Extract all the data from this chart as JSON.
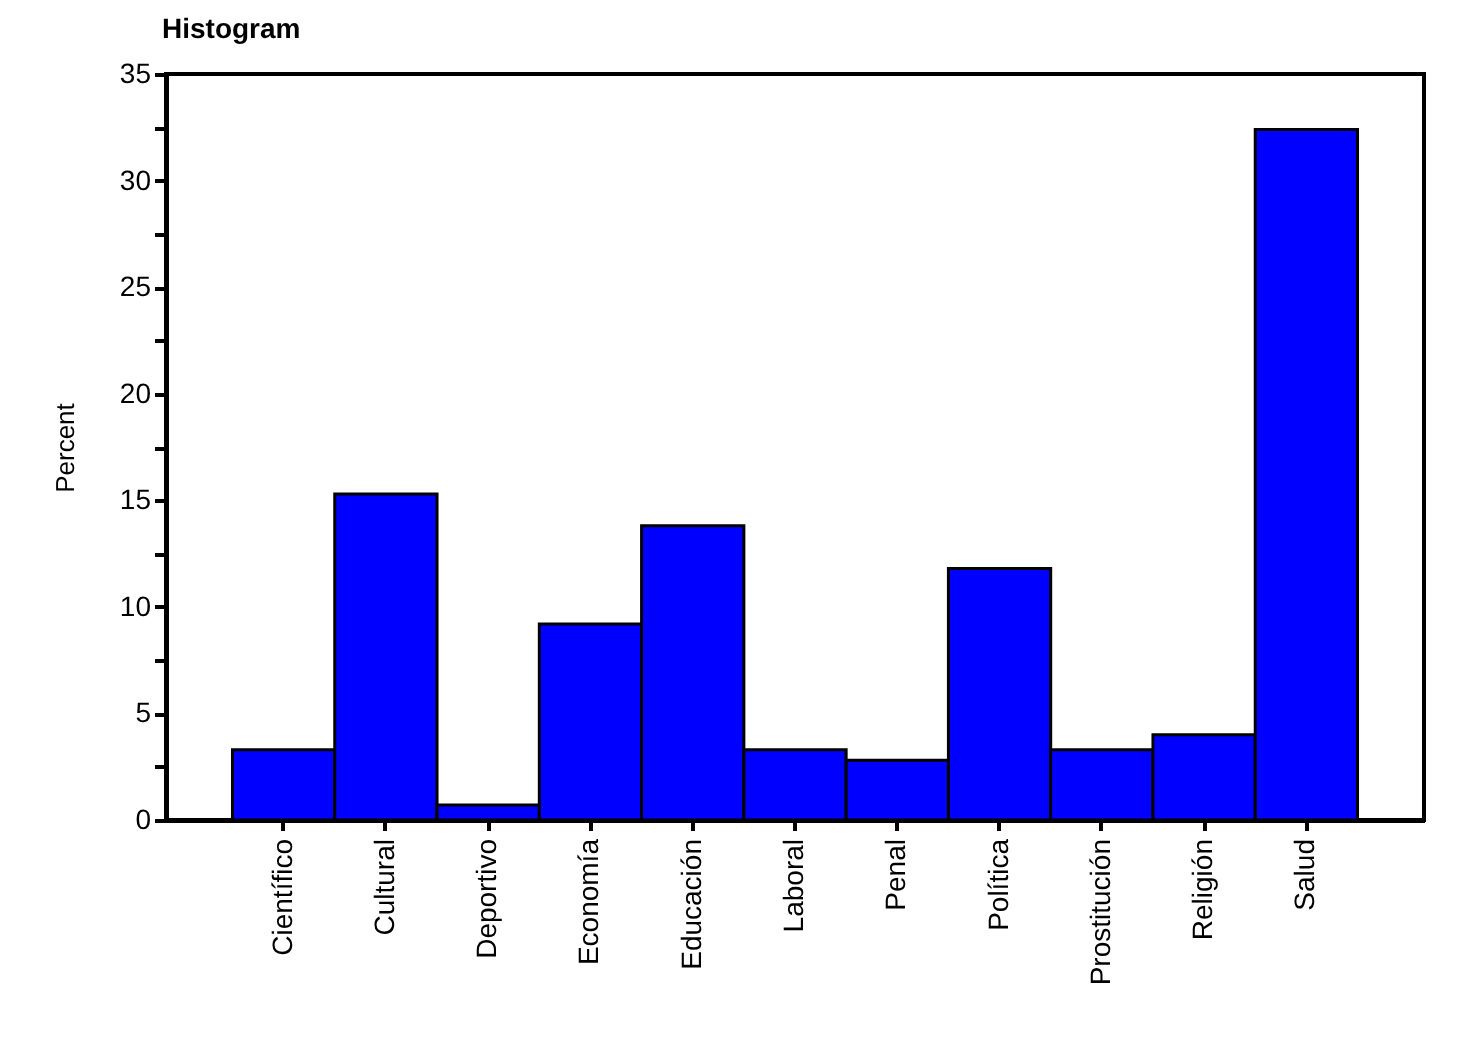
{
  "chart_data": {
    "type": "bar",
    "title": "Histogram",
    "ylabel": "Percent",
    "categories": [
      "Científico",
      "Cultural",
      "Deportivo",
      "Economía",
      "Educación",
      "Laboral",
      "Penal",
      "Política",
      "Prostitución",
      "Religión",
      "Salud"
    ],
    "values": [
      3.3,
      15.3,
      0.7,
      9.2,
      13.8,
      3.3,
      2.8,
      11.8,
      3.3,
      4.0,
      32.4
    ],
    "color": "#0000ff",
    "ylim": [
      0,
      35
    ],
    "yticks": [
      0,
      {
        "value": 2.5,
        "label": null
      },
      5,
      {
        "value": 7.5,
        "label": null
      },
      10,
      {
        "value": 12.5,
        "label": null
      },
      15,
      {
        "value": 17.5,
        "label": null
      },
      20,
      {
        "value": 22.5,
        "label": null
      },
      25,
      {
        "value": 27.5,
        "label": null
      },
      30,
      {
        "value": 32.5,
        "label": null
      },
      35
    ],
    "grid": false
  }
}
